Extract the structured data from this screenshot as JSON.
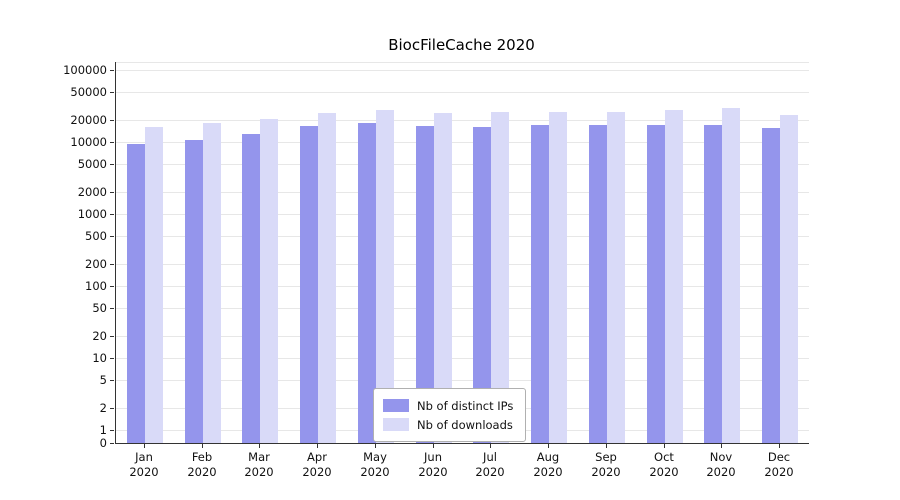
{
  "title": "BiocFileCache 2020",
  "chart_data": {
    "type": "bar",
    "title": "BiocFileCache 2020",
    "year_label": "2020",
    "categories": [
      "Jan",
      "Feb",
      "Mar",
      "Apr",
      "May",
      "Jun",
      "Jul",
      "Aug",
      "Sep",
      "Oct",
      "Nov",
      "Dec"
    ],
    "series": [
      {
        "name": "Nb of distinct IPs",
        "color": "#9495ec",
        "values": [
          9500,
          10500,
          13000,
          16500,
          18500,
          16500,
          16000,
          17500,
          17000,
          17500,
          17500,
          15500
        ]
      },
      {
        "name": "Nb of downloads",
        "color": "#d9daf8",
        "values": [
          16000,
          18500,
          21000,
          25000,
          28000,
          25000,
          26000,
          26500,
          26000,
          28000,
          29500,
          24000
        ]
      }
    ],
    "yticks": [
      0,
      1,
      2,
      5,
      10,
      20,
      50,
      100,
      200,
      500,
      1000,
      2000,
      5000,
      10000,
      20000,
      50000,
      100000
    ],
    "yscale": "log-symlog-zero",
    "ylim": [
      0,
      150000
    ],
    "grid": true,
    "legend_position": "bottom-center-inside",
    "xlabel": "",
    "ylabel": ""
  }
}
